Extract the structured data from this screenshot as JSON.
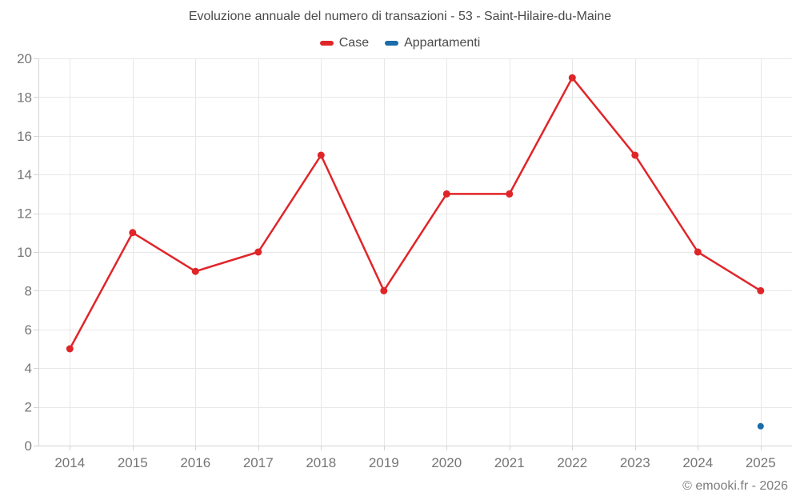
{
  "chart_data": {
    "type": "line",
    "title": "Evoluzione annuale del numero di transazioni - 53 - Saint-Hilaire-du-Maine",
    "categories": [
      "2014",
      "2015",
      "2016",
      "2017",
      "2018",
      "2019",
      "2020",
      "2021",
      "2022",
      "2023",
      "2024",
      "2025"
    ],
    "series": [
      {
        "name": "Case",
        "color": "#e02529",
        "marker_radius": 4.5,
        "values": [
          5,
          11,
          9,
          10,
          15,
          8,
          13,
          13,
          19,
          15,
          10,
          8
        ]
      },
      {
        "name": "Appartamenti",
        "color": "#1a6caa",
        "marker_radius": 4,
        "values": [
          null,
          null,
          null,
          null,
          null,
          null,
          null,
          null,
          null,
          null,
          null,
          1
        ]
      }
    ],
    "xlabel": "",
    "ylabel": "",
    "ylim": [
      0,
      20
    ],
    "ytick_step": 2,
    "grid": true,
    "legend_position": "top"
  },
  "footer": {
    "copyright": "© emooki.fr - 2026"
  },
  "style": {
    "grid_color": "#e7e7e7",
    "axis_color": "#d4d4d4",
    "tick_label_color": "#757575",
    "title_color": "#4a4a4a",
    "footer_color": "#7d7d7d",
    "background": "#ffffff"
  }
}
